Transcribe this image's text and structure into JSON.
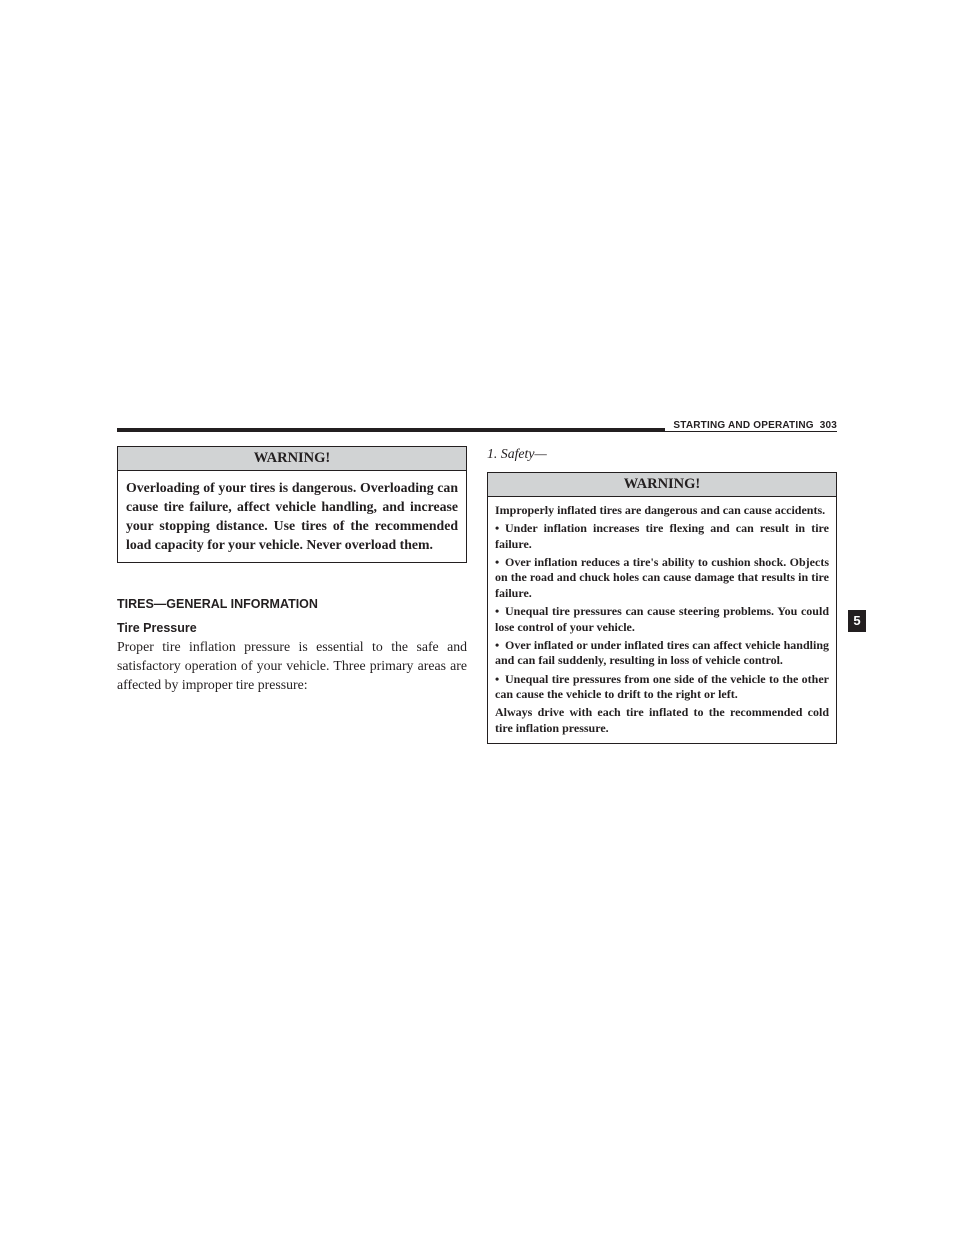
{
  "header": {
    "section_title": "STARTING AND OPERATING",
    "page_number": "303"
  },
  "side_tab": "5",
  "left": {
    "warning": {
      "title": "WARNING!",
      "body": "Overloading of your tires is dangerous. Overloading can cause tire failure, affect vehicle handling, and increase your stopping distance. Use tires of the recommended load capacity for your vehicle. Never overload them."
    },
    "section_heading": "TIRES—GENERAL INFORMATION",
    "subheading": "Tire Pressure",
    "body_text": "Proper tire inflation pressure is essential to the safe and satisfactory operation of your vehicle. Three primary areas are affected by improper tire pressure:"
  },
  "right": {
    "safety_line": "1.  Safety—",
    "warning": {
      "title": "WARNING!",
      "intro": "Improperly inflated tires are dangerous and can cause accidents.",
      "bullets": [
        "Under inflation increases tire flexing and can result in tire failure.",
        "Over inflation reduces a tire's ability to cushion shock. Objects on the road and chuck holes can cause damage that results in tire failure.",
        "Unequal tire pressures can cause steering problems. You could lose control of your vehicle.",
        "Over inflated or under inflated tires can affect vehicle handling and can fail suddenly, resulting in loss of vehicle control.",
        "Unequal tire pressures from one side of the vehicle to the other can cause the vehicle to drift to the right or left."
      ],
      "outro": "Always drive with each tire inflated to the recommended cold tire inflation pressure."
    }
  }
}
